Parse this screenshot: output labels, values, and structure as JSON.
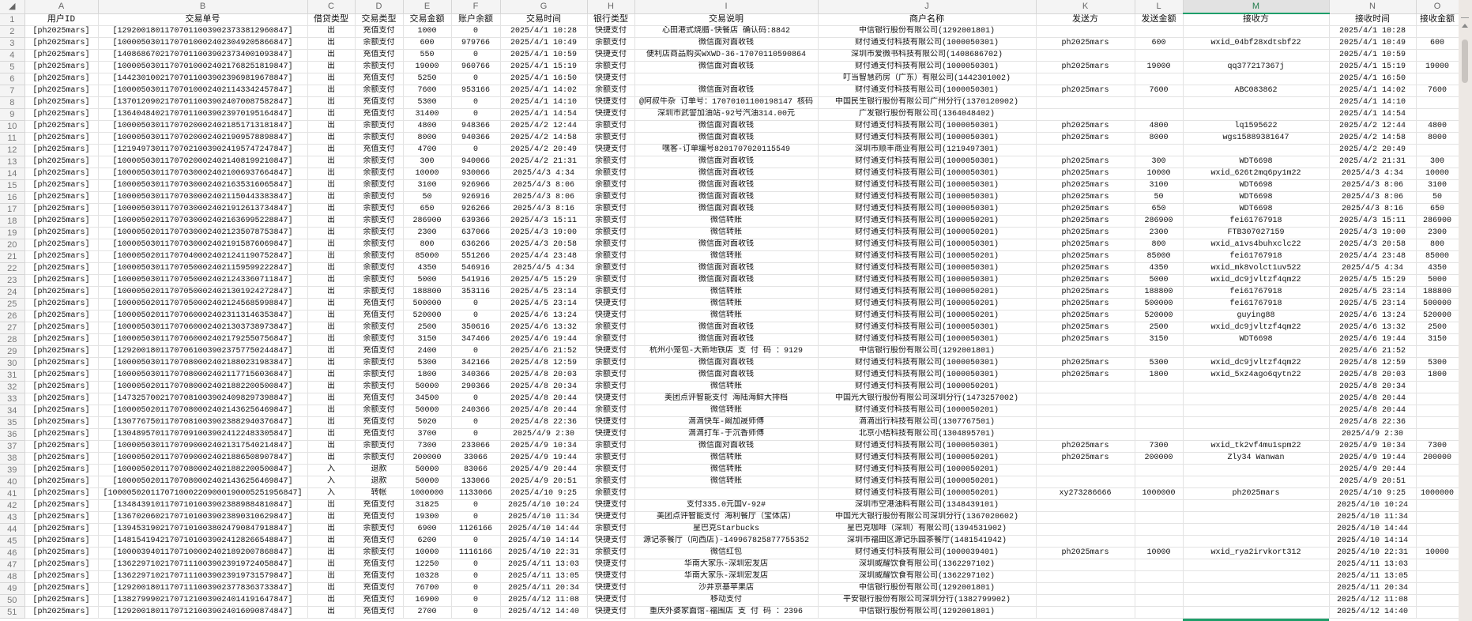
{
  "column_letters": [
    "A",
    "B",
    "C",
    "D",
    "E",
    "F",
    "G",
    "H",
    "I",
    "J",
    "K",
    "L",
    "M",
    "N",
    "O"
  ],
  "selected_column": "M",
  "titles": [
    "用户ID",
    "交易单号",
    "借贷类型",
    "交易类型",
    "交易金额",
    "账户余额",
    "交易时间",
    "银行类型",
    "交易说明",
    "商户名称",
    "发送方",
    "发送金额",
    "接收方",
    "接收时间",
    "接收金额"
  ],
  "rows": [
    [
      "[ph2025mars]",
      "[129200180117070110039023733812960847]",
      "出",
      "充值支付",
      "1000",
      "0",
      "2025/4/1 10:28",
      "快捷支付",
      "心田港式烧腊-快餐店 确认码:8842",
      "中信银行股份有限公司(1292001801)",
      "",
      "",
      "",
      "2025/4/1 10:28",
      ""
    ],
    [
      "[ph2025mars]",
      "[100005030117070100024023049205866847]",
      "出",
      "余额支付",
      "600",
      "979766",
      "2025/4/1 10:49",
      "余额支付",
      "微信面对面收钱",
      "财付通支付科技有限公司(1000050301)",
      "ph2025mars",
      "600",
      "wxid_04bf28xdtsbf22",
      "2025/4/1 10:49",
      "600"
    ],
    [
      "[ph2025mars]",
      "[140868670217070110039023734001093847]",
      "出",
      "充值支付",
      "550",
      "0",
      "2025/4/1 10:59",
      "快捷支付",
      "便利店商品购买WXWD-36-17070110590864",
      "深圳市爱微书科技有限公司(1408686702)",
      "",
      "",
      "",
      "2025/4/1 10:59",
      ""
    ],
    [
      "[ph2025mars]",
      "[100005030117070100024021768251819847]",
      "出",
      "余额支付",
      "19000",
      "960766",
      "2025/4/1 15:19",
      "余额支付",
      "微信面对面收钱",
      "财付通支付科技有限公司(1000050301)",
      "ph2025mars",
      "19000",
      "qq377217367j",
      "2025/4/1 15:19",
      "19000"
    ],
    [
      "[ph2025mars]",
      "[144230100217070110039023969819678847]",
      "出",
      "充值支付",
      "5250",
      "0",
      "2025/4/1 16:50",
      "快捷支付",
      "",
      "叮当智慧药房（广东）有限公司(1442301002)",
      "",
      "",
      "",
      "2025/4/1 16:50",
      ""
    ],
    [
      "[ph2025mars]",
      "[100005030117070100024021143342457847]",
      "出",
      "余额支付",
      "7600",
      "953166",
      "2025/4/1 14:02",
      "余额支付",
      "微信面对面收钱",
      "财付通支付科技有限公司(1000050301)",
      "ph2025mars",
      "7600",
      "ABC083862",
      "2025/4/1 14:02",
      "7600"
    ],
    [
      "[ph2025mars]",
      "[137012090217070110039024070087582847]",
      "出",
      "充值支付",
      "5300",
      "0",
      "2025/4/1 14:10",
      "快捷支付",
      "@阿叔牛杂 订单号：17070101100198147 核码",
      "中国民生银行股份有限公司广州分行(1370120902)",
      "",
      "",
      "",
      "2025/4/1 14:10",
      ""
    ],
    [
      "[ph2025mars]",
      "[136404840217070110039023970195164847]",
      "出",
      "充值支付",
      "31400",
      "0",
      "2025/4/1 14:54",
      "快捷支付",
      "深圳市武警加油站-92号汽油314.00元",
      "广发银行股份有限公司(1364048402)",
      "",
      "",
      "",
      "2025/4/1 14:54",
      ""
    ],
    [
      "[ph2025mars]",
      "[100005030117070200024021851713181847]",
      "出",
      "余额支付",
      "4800",
      "948366",
      "2025/4/2 12:44",
      "余额支付",
      "微信面对面收钱",
      "财付通支付科技有限公司(1000050301)",
      "ph2025mars",
      "4800",
      "lq1595622",
      "2025/4/2 12:44",
      "4800"
    ],
    [
      "[ph2025mars]",
      "[100005030117070200024021909578898847]",
      "出",
      "余额支付",
      "8000",
      "940366",
      "2025/4/2 14:58",
      "余额支付",
      "微信面对面收钱",
      "财付通支付科技有限公司(1000050301)",
      "ph2025mars",
      "8000",
      "wgs15889381647",
      "2025/4/2 14:58",
      "8000"
    ],
    [
      "[ph2025mars]",
      "[121949730117070210039024195747247847]",
      "出",
      "充值支付",
      "4700",
      "0",
      "2025/4/2 20:49",
      "快捷支付",
      "嘿客-订单编号8201707020115549",
      "深圳市顺丰商业有限公司(1219497301)",
      "",
      "",
      "",
      "2025/4/2 20:49",
      ""
    ],
    [
      "[ph2025mars]",
      "[100005030117070200024021408199210847]",
      "出",
      "余额支付",
      "300",
      "940066",
      "2025/4/2 21:31",
      "余额支付",
      "微信面对面收钱",
      "财付通支付科技有限公司(1000050301)",
      "ph2025mars",
      "300",
      "WDT6698",
      "2025/4/2 21:31",
      "300"
    ],
    [
      "[ph2025mars]",
      "[100005030117070300024021006937664847]",
      "出",
      "余额支付",
      "10000",
      "930066",
      "2025/4/3 4:34",
      "余额支付",
      "微信面对面收钱",
      "财付通支付科技有限公司(1000050301)",
      "ph2025mars",
      "10000",
      "wxid_626t2mq6py1m22",
      "2025/4/3 4:34",
      "10000"
    ],
    [
      "[ph2025mars]",
      "[100005030117070300024021635316065847]",
      "出",
      "余额支付",
      "3100",
      "926966",
      "2025/4/3 8:06",
      "余额支付",
      "微信面对面收钱",
      "财付通支付科技有限公司(1000050301)",
      "ph2025mars",
      "3100",
      "WDT6698",
      "2025/4/3 8:06",
      "3100"
    ],
    [
      "[ph2025mars]",
      "[100005030117070300024021150443383847]",
      "出",
      "余额支付",
      "50",
      "926916",
      "2025/4/3 8:06",
      "余额支付",
      "微信面对面收钱",
      "财付通支付科技有限公司(1000050301)",
      "ph2025mars",
      "50",
      "WDT6698",
      "2025/4/3 8:06",
      "50"
    ],
    [
      "[ph2025mars]",
      "[100005030117070300024021912613734847]",
      "出",
      "余额支付",
      "650",
      "926266",
      "2025/4/3 8:16",
      "余额支付",
      "微信面对面收钱",
      "财付通支付科技有限公司(1000050301)",
      "ph2025mars",
      "650",
      "WDT6698",
      "2025/4/3 8:16",
      "650"
    ],
    [
      "[ph2025mars]",
      "[100005020117070300024021636995228847]",
      "出",
      "余额支付",
      "286900",
      "639366",
      "2025/4/3 15:11",
      "余额支付",
      "微信转账",
      "财付通支付科技有限公司(1000050201)",
      "ph2025mars",
      "286900",
      "fei61767918",
      "2025/4/3 15:11",
      "286900"
    ],
    [
      "[ph2025mars]",
      "[100005020117070300024021235078753847]",
      "出",
      "余额支付",
      "2300",
      "637066",
      "2025/4/3 19:00",
      "余额支付",
      "微信转账",
      "财付通支付科技有限公司(1000050201)",
      "ph2025mars",
      "2300",
      "FTB307027159",
      "2025/4/3 19:00",
      "2300"
    ],
    [
      "[ph2025mars]",
      "[100005030117070300024021915876069847]",
      "出",
      "余额支付",
      "800",
      "636266",
      "2025/4/3 20:58",
      "余额支付",
      "微信面对面收钱",
      "财付通支付科技有限公司(1000050301)",
      "ph2025mars",
      "800",
      "wxid_a1vs4buhxclc22",
      "2025/4/3 20:58",
      "800"
    ],
    [
      "[ph2025mars]",
      "[100005020117070400024021241190752847]",
      "出",
      "余额支付",
      "85000",
      "551266",
      "2025/4/4 23:48",
      "余额支付",
      "微信转账",
      "财付通支付科技有限公司(1000050201)",
      "ph2025mars",
      "85000",
      "fei61767918",
      "2025/4/4 23:48",
      "85000"
    ],
    [
      "[ph2025mars]",
      "[100005030117070500024021159599222847]",
      "出",
      "余额支付",
      "4350",
      "546916",
      "2025/4/5 4:34",
      "余额支付",
      "微信面对面收钱",
      "财付通支付科技有限公司(1000050301)",
      "ph2025mars",
      "4350",
      "wxid_mk8volct1uv522",
      "2025/4/5 4:34",
      "4350"
    ],
    [
      "[ph2025mars]",
      "[100005030117070500024021243360711847]",
      "出",
      "余额支付",
      "5000",
      "541916",
      "2025/4/5 15:29",
      "余额支付",
      "微信面对面收钱",
      "财付通支付科技有限公司(1000050301)",
      "ph2025mars",
      "5000",
      "wxid_dc9jvltzf4qm22",
      "2025/4/5 15:29",
      "5000"
    ],
    [
      "[ph2025mars]",
      "[100005020117070500024021301924272847]",
      "出",
      "余额支付",
      "188800",
      "353116",
      "2025/4/5 23:14",
      "余额支付",
      "微信转账",
      "财付通支付科技有限公司(1000050201)",
      "ph2025mars",
      "188800",
      "fei61767918",
      "2025/4/5 23:14",
      "188800"
    ],
    [
      "[ph2025mars]",
      "[100005020117070500024021245685998847]",
      "出",
      "充值支付",
      "500000",
      "0",
      "2025/4/5 23:14",
      "快捷支付",
      "微信转账",
      "财付通支付科技有限公司(1000050201)",
      "ph2025mars",
      "500000",
      "fei61767918",
      "2025/4/5 23:14",
      "500000"
    ],
    [
      "[ph2025mars]",
      "[100005020117070600024023113146353847]",
      "出",
      "充值支付",
      "520000",
      "0",
      "2025/4/6 13:24",
      "快捷支付",
      "微信转账",
      "财付通支付科技有限公司(1000050201)",
      "ph2025mars",
      "520000",
      "guying88",
      "2025/4/6 13:24",
      "520000"
    ],
    [
      "[ph2025mars]",
      "[100005030117070600024021303738973847]",
      "出",
      "余额支付",
      "2500",
      "350616",
      "2025/4/6 13:32",
      "余额支付",
      "微信面对面收钱",
      "财付通支付科技有限公司(1000050301)",
      "ph2025mars",
      "2500",
      "wxid_dc9jvltzf4qm22",
      "2025/4/6 13:32",
      "2500"
    ],
    [
      "[ph2025mars]",
      "[100005030117070600024021792550756847]",
      "出",
      "余额支付",
      "3150",
      "347466",
      "2025/4/6 19:44",
      "余额支付",
      "微信面对面收钱",
      "财付通支付科技有限公司(1000050301)",
      "ph2025mars",
      "3150",
      "WDT6698",
      "2025/4/6 19:44",
      "3150"
    ],
    [
      "[ph2025mars]",
      "[129200180117070610039023757750244847]",
      "出",
      "充值支付",
      "2400",
      "0",
      "2025/4/6 21:52",
      "快捷支付",
      "杭州小笼包-大新地铁店 支 付 码 ：9129",
      "中信银行股份有限公司(1292001801)",
      "",
      "",
      "",
      "2025/4/6 21:52",
      ""
    ],
    [
      "[ph2025mars]",
      "[100005030117070800024021880231983847]",
      "出",
      "余额支付",
      "5300",
      "342166",
      "2025/4/8 12:59",
      "余额支付",
      "微信面对面收钱",
      "财付通支付科技有限公司(1000050301)",
      "ph2025mars",
      "5300",
      "wxid_dc9jvltzf4qm22",
      "2025/4/8 12:59",
      "5300"
    ],
    [
      "[ph2025mars]",
      "[100005030117070800024021177156036847]",
      "出",
      "余额支付",
      "1800",
      "340366",
      "2025/4/8 20:03",
      "余额支付",
      "微信面对面收钱",
      "财付通支付科技有限公司(1000050301)",
      "ph2025mars",
      "1800",
      "wxid_5xz4ago6qytn22",
      "2025/4/8 20:03",
      "1800"
    ],
    [
      "[ph2025mars]",
      "[100005020117070800024021882200500847]",
      "出",
      "余额支付",
      "50000",
      "290366",
      "2025/4/8 20:34",
      "余额支付",
      "微信转账",
      "财付通支付科技有限公司(1000050201)",
      "",
      "",
      "",
      "2025/4/8 20:34",
      ""
    ],
    [
      "[ph2025mars]",
      "[147325700217070810039024098297398847]",
      "出",
      "充值支付",
      "34500",
      "0",
      "2025/4/8 20:44",
      "快捷支付",
      "美团点评智能支付 海陆海鲜大排档",
      "中国光大银行股份有限公司深圳分行(1473257002)",
      "",
      "",
      "",
      "2025/4/8 20:44",
      ""
    ],
    [
      "[ph2025mars]",
      "[100005020117070800024021436256469847]",
      "出",
      "余额支付",
      "50000",
      "240366",
      "2025/4/8 20:44",
      "余额支付",
      "微信转账",
      "财付通支付科技有限公司(1000050201)",
      "",
      "",
      "",
      "2025/4/8 20:44",
      ""
    ],
    [
      "[ph2025mars]",
      "[130776750117070810039023882940376847]",
      "出",
      "充值支付",
      "5020",
      "0",
      "2025/4/8 22:36",
      "快捷支付",
      "滴滴快车-阚加晟师傅",
      "滴滴出行科技有限公司(1307767501)",
      "",
      "",
      "",
      "2025/4/8 22:36",
      ""
    ],
    [
      "[ph2025mars]",
      "[130489570117070910039024122483305847]",
      "出",
      "充值支付",
      "3700",
      "0",
      "2025/4/9 2:30",
      "快捷支付",
      "滴滴打车-于沉香师傅",
      "北京小桔科技有限公司(1304895701)",
      "",
      "",
      "",
      "2025/4/9 2:30",
      ""
    ],
    [
      "[ph2025mars]",
      "[100005030117070900024021317540214847]",
      "出",
      "余额支付",
      "7300",
      "233066",
      "2025/4/9 10:34",
      "余额支付",
      "微信面对面收钱",
      "财付通支付科技有限公司(1000050301)",
      "ph2025mars",
      "7300",
      "wxid_tk2vf4mu1spm22",
      "2025/4/9 10:34",
      "7300"
    ],
    [
      "[ph2025mars]",
      "[100005020117070900024021886508907847]",
      "出",
      "余额支付",
      "200000",
      "33066",
      "2025/4/9 19:44",
      "余额支付",
      "微信转账",
      "财付通支付科技有限公司(1000050201)",
      "ph2025mars",
      "200000",
      "Zly34 Wanwan",
      "2025/4/9 19:44",
      "200000"
    ],
    [
      "[ph2025mars]",
      "[100005020117070800024021882200500847]",
      "入",
      "退款",
      "50000",
      "83066",
      "2025/4/9 20:44",
      "余额支付",
      "微信转账",
      "财付通支付科技有限公司(1000050201)",
      "",
      "",
      "",
      "2025/4/9 20:44",
      ""
    ],
    [
      "[ph2025mars]",
      "[100005020117070800024021436256469847]",
      "入",
      "退款",
      "50000",
      "133066",
      "2025/4/9 20:51",
      "余额支付",
      "微信转账",
      "财付通支付科技有限公司(1000050201)",
      "",
      "",
      "",
      "2025/4/9 20:51",
      ""
    ],
    [
      "[ph2025mars]",
      "[1000050201170710002209000190005251956847]",
      "入",
      "转帐",
      "1000000",
      "1133066",
      "2025/4/10 9:25",
      "余额支付",
      "",
      "财付通支付科技有限公司(1000050201)",
      "xy273286666",
      "1000000",
      "ph2025mars",
      "2025/4/10 9:25",
      "1000000"
    ],
    [
      "[ph2025mars]",
      "[134843910117071010039023889884810847]",
      "出",
      "充值支付",
      "31825",
      "0",
      "2025/4/10 10:24",
      "快捷支付",
      "支付335.0元国V-92#",
      "深圳市空港油料有限公司(1348439101)",
      "",
      "",
      "",
      "2025/4/10 10:24",
      ""
    ],
    [
      "[ph2025mars]",
      "[136702060217071010039023890310629847]",
      "出",
      "充值支付",
      "19300",
      "0",
      "2025/4/10 11:34",
      "快捷支付",
      "美团点评智能支付 海利餐厅（宝体店）",
      "中国光大银行股份有限公司深圳分行(1367020602)",
      "",
      "",
      "",
      "2025/4/10 11:34",
      ""
    ],
    [
      "[ph2025mars]",
      "[139453190217071010038024790847918847]",
      "出",
      "余额支付",
      "6900",
      "1126166",
      "2025/4/10 14:44",
      "余额支付",
      "星巴克Starbucks",
      "星巴克咖啡（深圳）有限公司(1394531902)",
      "",
      "",
      "",
      "2025/4/10 14:44",
      ""
    ],
    [
      "[ph2025mars]",
      "[148154194217071010039024128266548847]",
      "出",
      "充值支付",
      "6200",
      "0",
      "2025/4/10 14:14",
      "快捷支付",
      "源记茶餐厅（向西店)-149967825877755352",
      "深圳市福田区源记乐园茶餐厅(1481541942)",
      "",
      "",
      "",
      "2025/4/10 14:14",
      ""
    ],
    [
      "[ph2025mars]",
      "[100003940117071000024021892007868847]",
      "出",
      "余额支付",
      "10000",
      "1116166",
      "2025/4/10 22:31",
      "余额支付",
      "微信红包",
      "财付通支付科技有限公司(1000039401)",
      "ph2025mars",
      "10000",
      "wxid_rya2irvkort312",
      "2025/4/10 22:31",
      "10000"
    ],
    [
      "[ph2025mars]",
      "[136229710217071110039023919724058847]",
      "出",
      "充值支付",
      "12250",
      "0",
      "2025/4/11 13:03",
      "快捷支付",
      "华南大家乐-深圳宏发店",
      "深圳威耀饮食有限公司(1362297102)",
      "",
      "",
      "",
      "2025/4/11 13:03",
      ""
    ],
    [
      "[ph2025mars]",
      "[136229710217071110039023919731579847]",
      "出",
      "充值支付",
      "10328",
      "0",
      "2025/4/11 13:05",
      "快捷支付",
      "华南大家乐-深圳宏发店",
      "深圳威耀饮食有限公司(1362297102)",
      "",
      "",
      "",
      "2025/4/11 13:05",
      ""
    ],
    [
      "[ph2025mars]",
      "[129200180117071110039023778363733847]",
      "出",
      "充值支付",
      "76700",
      "0",
      "2025/4/11 20:34",
      "快捷支付",
      "沙井京基苹果店",
      "中信银行股份有限公司(1292001801)",
      "",
      "",
      "",
      "2025/4/11 20:34",
      ""
    ],
    [
      "[ph2025mars]",
      "[138279990217071210039024014191647847]",
      "出",
      "充值支付",
      "16900",
      "0",
      "2025/4/12 11:08",
      "快捷支付",
      "移动支付",
      "平安银行股份有限公司深圳分行(1382799902)",
      "",
      "",
      "",
      "2025/4/12 11:08",
      ""
    ],
    [
      "[ph2025mars]",
      "[129200180117071210039024016090874847]",
      "出",
      "充值支付",
      "2700",
      "0",
      "2025/4/12 14:40",
      "快捷支付",
      "重庆外婆家面馆-福围店 支 付 码 ：2396",
      "中信银行股份有限公司(1292001801)",
      "",
      "",
      "",
      "2025/4/12 14:40",
      ""
    ]
  ],
  "colors": {
    "accent": "#1e9e6a",
    "header_bg": "#f4f4f4",
    "gridline": "#e3e3e3"
  }
}
